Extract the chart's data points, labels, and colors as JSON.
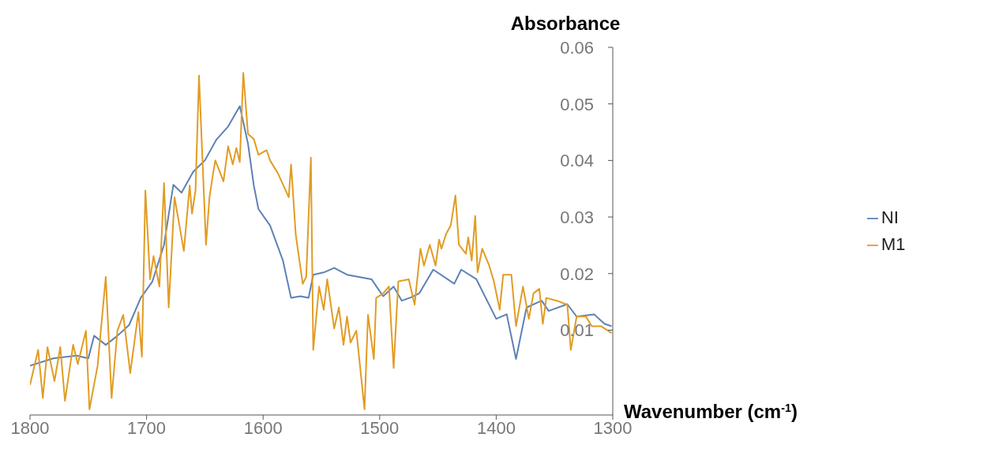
{
  "chart_data": {
    "type": "line",
    "xlabel": "Wavenumber (cm$^{-1}$)",
    "ylabel": "Absorbance",
    "xlim": [
      1800,
      1300
    ],
    "xticks": [
      1800,
      1700,
      1600,
      1500,
      1400,
      1300
    ],
    "ylim": [
      -0.005,
      0.06
    ],
    "yticks": [
      0.01,
      0.02,
      0.03,
      0.04,
      0.05,
      0.06
    ],
    "legend": "right",
    "grid": false,
    "marker": "none",
    "line_style": "solid",
    "series": [
      {
        "name": "NI",
        "color": "#5e81b5",
        "x": [
          1800,
          1780,
          1760,
          1750,
          1745,
          1735,
          1725,
          1715,
          1705,
          1695,
          1685,
          1677,
          1670,
          1660,
          1650,
          1640,
          1630,
          1620,
          1613,
          1608,
          1604,
          1594,
          1583,
          1576,
          1568,
          1561,
          1557,
          1548,
          1539,
          1528,
          1518,
          1507,
          1497,
          1488,
          1481,
          1473,
          1466,
          1454,
          1436,
          1430,
          1417,
          1400,
          1391,
          1383,
          1374,
          1361,
          1355,
          1339,
          1331,
          1316,
          1307,
          1301
        ],
        "values": [
          0.0037,
          0.005,
          0.0055,
          0.005,
          0.009,
          0.0074,
          0.009,
          0.0109,
          0.0157,
          0.0186,
          0.0251,
          0.0357,
          0.0343,
          0.038,
          0.04,
          0.0437,
          0.046,
          0.0496,
          0.043,
          0.0356,
          0.0314,
          0.0285,
          0.0223,
          0.0157,
          0.016,
          0.0157,
          0.0198,
          0.0202,
          0.021,
          0.0198,
          0.0194,
          0.019,
          0.016,
          0.0177,
          0.0152,
          0.0158,
          0.0165,
          0.0207,
          0.0182,
          0.0207,
          0.019,
          0.012,
          0.0128,
          0.0049,
          0.014,
          0.0152,
          0.0134,
          0.0146,
          0.0124,
          0.0128,
          0.0111,
          0.0107
        ]
      },
      {
        "name": "M1",
        "color": "#e19c24",
        "x": [
          1800,
          1793,
          1789,
          1785,
          1779,
          1774,
          1770,
          1763,
          1759,
          1752,
          1749,
          1742,
          1735,
          1730,
          1725,
          1720,
          1714,
          1707,
          1704,
          1701,
          1697,
          1694,
          1689,
          1685,
          1681,
          1676,
          1668,
          1663,
          1661,
          1658,
          1655,
          1649,
          1646,
          1643,
          1641,
          1634,
          1630,
          1626,
          1623,
          1620,
          1617,
          1613,
          1608,
          1604,
          1597,
          1594,
          1587,
          1578,
          1576,
          1572,
          1566,
          1563,
          1559,
          1557,
          1552,
          1548,
          1545,
          1539,
          1535,
          1531,
          1528,
          1525,
          1520,
          1513,
          1510,
          1505,
          1503,
          1497,
          1492,
          1488,
          1484,
          1475,
          1470,
          1465,
          1462,
          1457,
          1452,
          1449,
          1447,
          1443,
          1439,
          1435,
          1432,
          1426,
          1424,
          1421,
          1418,
          1416,
          1412,
          1406,
          1402,
          1397,
          1394,
          1387,
          1383,
          1377,
          1372,
          1368,
          1363,
          1360,
          1357,
          1348,
          1339,
          1336,
          1331,
          1323,
          1318,
          1310,
          1301
        ],
        "values": [
          0.0003,
          0.0065,
          -0.002,
          0.007,
          0.001,
          0.007,
          -0.0025,
          0.0074,
          0.004,
          0.0099,
          -0.004,
          0.0037,
          0.0194,
          -0.002,
          0.0099,
          0.0127,
          0.0024,
          0.0132,
          0.0053,
          0.0347,
          0.019,
          0.0231,
          0.0177,
          0.036,
          0.014,
          0.0335,
          0.024,
          0.0356,
          0.0306,
          0.0347,
          0.055,
          0.0251,
          0.0335,
          0.0376,
          0.04,
          0.0363,
          0.0425,
          0.0393,
          0.0422,
          0.0397,
          0.0555,
          0.0447,
          0.0438,
          0.041,
          0.0418,
          0.04,
          0.0376,
          0.0335,
          0.0393,
          0.0269,
          0.0182,
          0.0194,
          0.0405,
          0.0065,
          0.0177,
          0.0136,
          0.019,
          0.0103,
          0.014,
          0.0074,
          0.0124,
          0.0078,
          0.0099,
          -0.004,
          0.0127,
          0.0049,
          0.0157,
          0.0165,
          0.0177,
          0.0033,
          0.0186,
          0.019,
          0.0145,
          0.0244,
          0.0214,
          0.0251,
          0.0214,
          0.026,
          0.0244,
          0.027,
          0.0285,
          0.0338,
          0.0251,
          0.0235,
          0.0264,
          0.0223,
          0.0302,
          0.0202,
          0.0244,
          0.0214,
          0.0186,
          0.0136,
          0.0198,
          0.0198,
          0.0107,
          0.0177,
          0.012,
          0.0165,
          0.0173,
          0.0111,
          0.0157,
          0.0152,
          0.0145,
          0.0065,
          0.0124,
          0.0124,
          0.0107,
          0.0107,
          0.0095
        ]
      }
    ]
  }
}
